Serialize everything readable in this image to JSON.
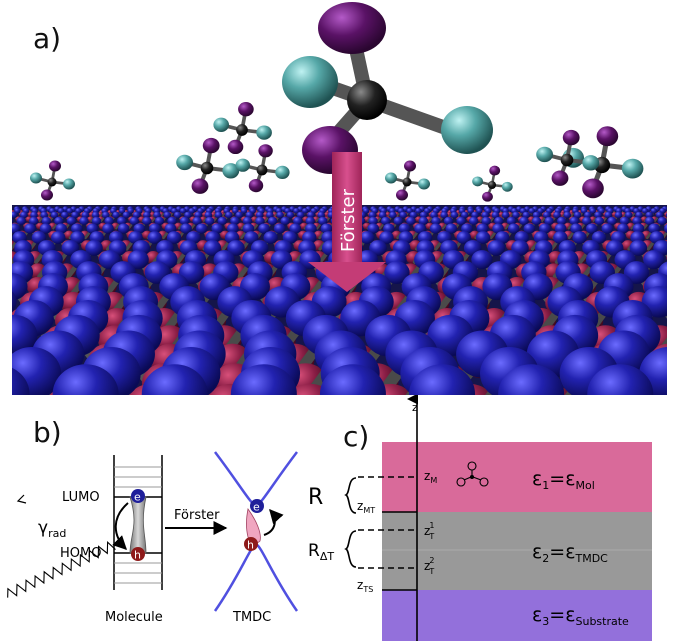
{
  "panels": {
    "a_label": "a)",
    "b_label": "b)",
    "c_label": "c)"
  },
  "panel_a": {
    "arrow_label": "Förster",
    "colors": {
      "arrow": "#c43c76",
      "metal_atom": "#1e1b8f",
      "chalcogen_atom": "#8b1e46",
      "bond": "#4a4a4a",
      "molecule_purple": "#5a1266",
      "molecule_teal": "#4aa0a0",
      "molecule_carbon": "#222222"
    }
  },
  "panel_b": {
    "lumo_label": "LUMO",
    "homo_label": "HOMO",
    "gamma_label": "γ",
    "gamma_sub": "rad",
    "forster_label": "Förster",
    "electron_label": "e",
    "hole_label": "h",
    "molecule_caption": "Molecule",
    "tmdc_caption": "TMDC"
  },
  "panel_c": {
    "axis_label": "z",
    "R_label": "R",
    "RdT_label": "R",
    "RdT_sub": "ΔT",
    "zM": {
      "main": "z",
      "sub": "M"
    },
    "zMT": {
      "main": "z",
      "sub": "MT"
    },
    "zT1": {
      "main": "z",
      "sup": "1",
      "sub": "T"
    },
    "zT2": {
      "main": "z",
      "sup": "2",
      "sub": "T"
    },
    "zTS": {
      "main": "z",
      "sub": "TS"
    },
    "eps1": {
      "lhs": "ε",
      "lhs_sub": "1",
      "rhs": "ε",
      "rhs_sub": "Mol"
    },
    "eps2": {
      "lhs": "ε",
      "lhs_sub": "2",
      "rhs": "ε",
      "rhs_sub": "TMDC"
    },
    "eps3": {
      "lhs": "ε",
      "lhs_sub": "3",
      "rhs": "ε",
      "rhs_sub": "Substrate"
    },
    "colors": {
      "mol_layer": "#d96a9a",
      "tmdc_layer": "#999999",
      "substrate_layer": "#9370db"
    }
  }
}
